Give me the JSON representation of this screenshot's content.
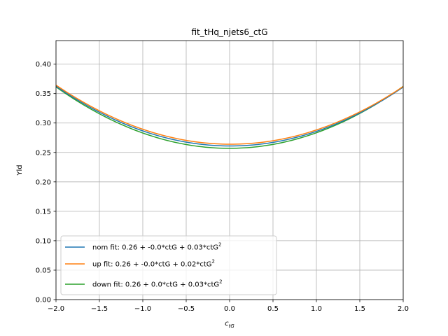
{
  "chart_data": {
    "type": "line",
    "title": "fit_tHq_njets6_ctG",
    "xlabel_main": "c",
    "xlabel_sub": "tG",
    "ylabel": "Yld",
    "xlim": [
      -2.0,
      2.0
    ],
    "ylim": [
      0.0,
      0.44
    ],
    "xticks": [
      "−2.0",
      "−1.5",
      "−1.0",
      "−0.5",
      "0.0",
      "0.5",
      "1.0",
      "1.5",
      "2.0"
    ],
    "yticks": [
      "0.00",
      "0.05",
      "0.10",
      "0.15",
      "0.20",
      "0.25",
      "0.30",
      "0.35",
      "0.40"
    ],
    "xtick_values": [
      -2.0,
      -1.5,
      -1.0,
      -0.5,
      0.0,
      0.5,
      1.0,
      1.5,
      2.0
    ],
    "ytick_values": [
      0.0,
      0.05,
      0.1,
      0.15,
      0.2,
      0.25,
      0.3,
      0.35,
      0.4
    ],
    "grid": true,
    "legend_position": "lower-left",
    "series": [
      {
        "label_main": "nom fit: 0.26 + -0.0*ctG + 0.03*ctG",
        "label_sup": "2",
        "color": "#1f77b4",
        "coefficients": {
          "c0": 0.261,
          "c1": -0.0004,
          "c2": 0.0252
        }
      },
      {
        "label_main": "up fit: 0.26 + -0.0*ctG + 0.02*ctG",
        "label_sup": "2",
        "color": "#ff7f0e",
        "coefficients": {
          "c0": 0.264,
          "c1": -0.0006,
          "c2": 0.0248
        }
      },
      {
        "label_main": "down fit: 0.26 + 0.0*ctG + 0.03*ctG",
        "label_sup": "2",
        "color": "#2ca02c",
        "coefficients": {
          "c0": 0.257,
          "c1": 0.0002,
          "c2": 0.0262
        }
      }
    ]
  }
}
